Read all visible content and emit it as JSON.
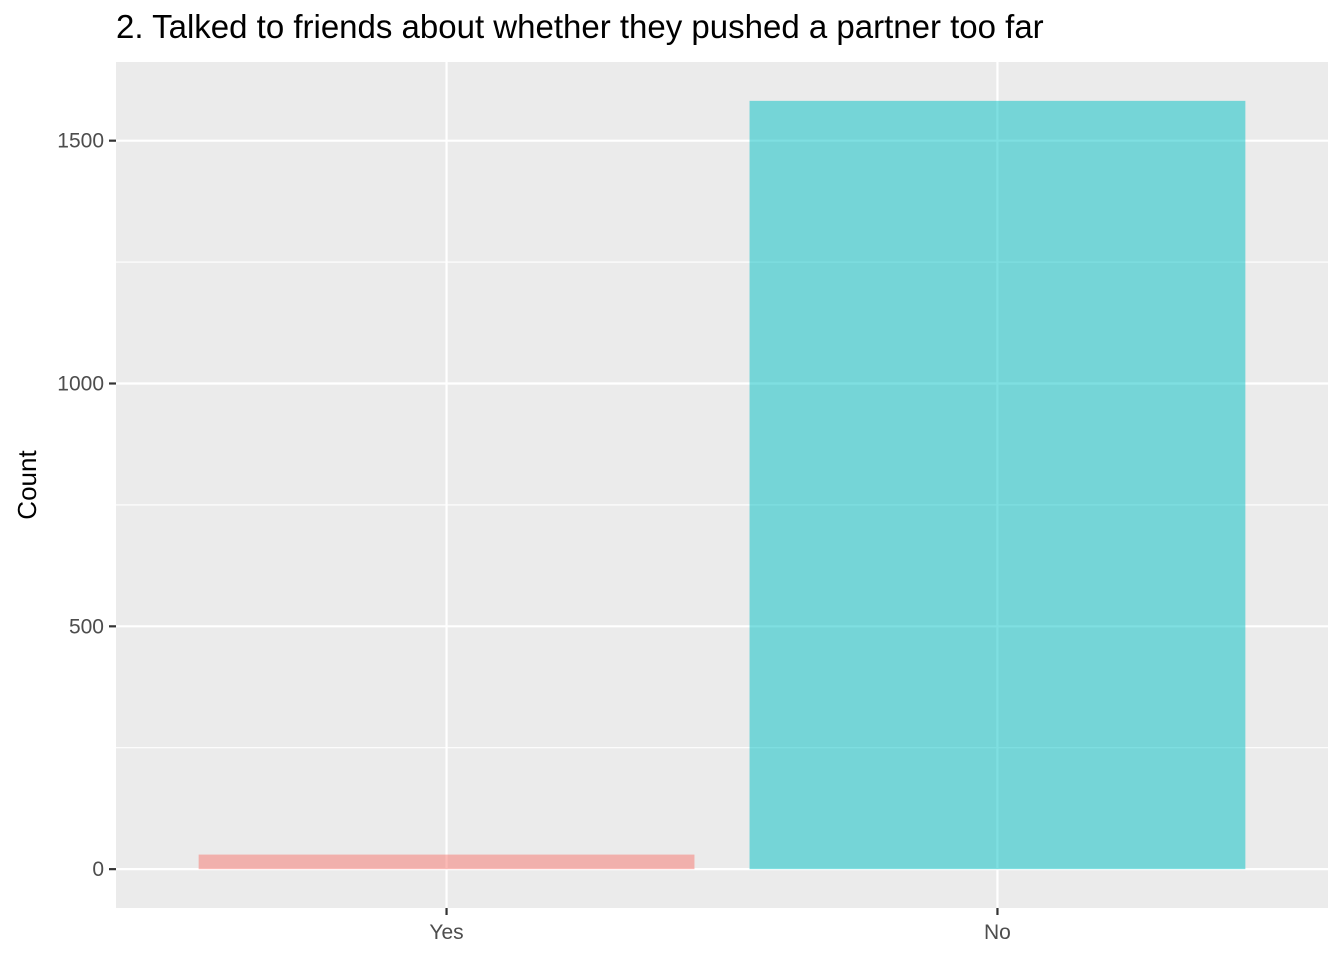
{
  "chart_data": {
    "type": "bar",
    "title": "2. Talked to friends about whether they pushed a partner too far",
    "xlabel": "",
    "ylabel": "Count",
    "categories": [
      "Yes",
      "No"
    ],
    "values": [
      30,
      1582
    ],
    "bar_colors": [
      "#F8766D",
      "#00BFC4"
    ],
    "bar_opacity": 0.5,
    "ylim": [
      -80,
      1662
    ],
    "yticks": [
      0,
      500,
      1000,
      1500
    ],
    "ytick_labels": [
      "0",
      "500",
      "1000",
      "1500"
    ],
    "grid": true,
    "panel_background": "#EBEBEB",
    "gridline_color": "#FFFFFF",
    "legend": "none"
  }
}
